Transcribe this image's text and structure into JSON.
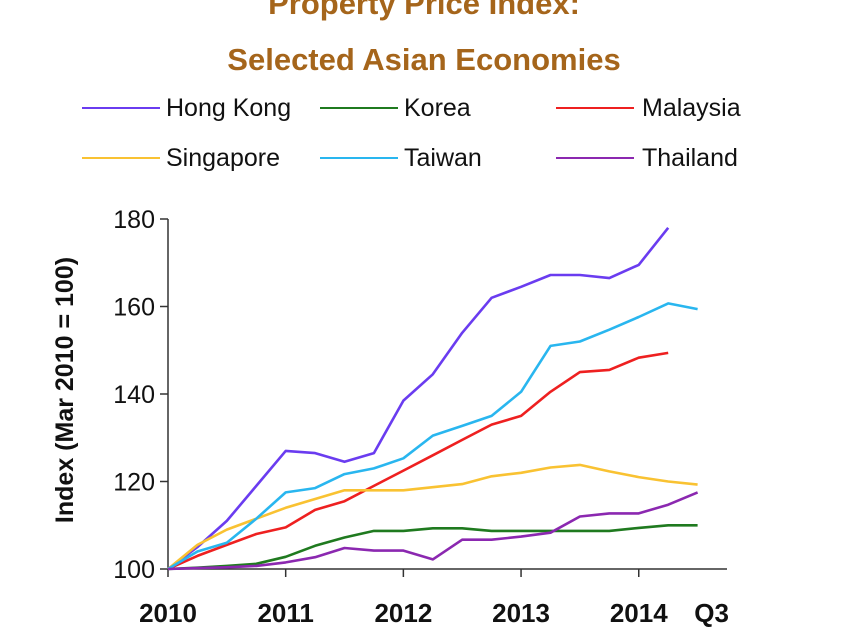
{
  "chart_data": {
    "type": "line",
    "title": "Property Price Index:",
    "subtitle": "Selected Asian Economies",
    "ylabel": "Index (Mar 2010 = 100)",
    "xlabel": "",
    "ylim": [
      100,
      180
    ],
    "yticks": [
      100,
      120,
      140,
      160,
      180
    ],
    "xlim": [
      2010,
      2014.75
    ],
    "xticks": [
      {
        "value": 2010,
        "label": "2010"
      },
      {
        "value": 2011,
        "label": "2011"
      },
      {
        "value": 2012,
        "label": "2012"
      },
      {
        "value": 2013,
        "label": "2013"
      },
      {
        "value": 2014,
        "label": "2014"
      },
      {
        "value": 2014.5,
        "label": "Q3"
      }
    ],
    "grid": false,
    "legend_position": "top",
    "series": [
      {
        "name": "Hong Kong",
        "color": "#6a3cf0",
        "x": [
          2010,
          2010.25,
          2010.5,
          2010.75,
          2011,
          2011.25,
          2011.5,
          2011.75,
          2012,
          2012.25,
          2012.5,
          2012.75,
          2013,
          2013.25,
          2013.5,
          2013.75,
          2014,
          2014.25
        ],
        "values": [
          100,
          105,
          111,
          119,
          127,
          126.5,
          124.5,
          126.5,
          138.5,
          144.5,
          154,
          162,
          164.5,
          167.2,
          167.2,
          166.5,
          169.5,
          178
        ]
      },
      {
        "name": "Korea",
        "color": "#1f7a1f",
        "x": [
          2010,
          2010.25,
          2010.5,
          2010.75,
          2011,
          2011.25,
          2011.5,
          2011.75,
          2012,
          2012.25,
          2012.5,
          2012.75,
          2013,
          2013.25,
          2013.5,
          2013.75,
          2014,
          2014.25,
          2014.5
        ],
        "values": [
          100,
          100.3,
          100.7,
          101.2,
          102.8,
          105.3,
          107.2,
          108.7,
          108.7,
          109.3,
          109.3,
          108.7,
          108.7,
          108.7,
          108.7,
          108.7,
          109.4,
          110,
          110
        ]
      },
      {
        "name": "Malaysia",
        "color": "#ee2020",
        "x": [
          2010,
          2010.25,
          2010.5,
          2010.75,
          2011,
          2011.25,
          2011.5,
          2011.75,
          2012,
          2012.25,
          2012.5,
          2012.75,
          2013,
          2013.25,
          2013.5,
          2013.75,
          2014,
          2014.25
        ],
        "values": [
          100,
          103,
          105.5,
          108,
          109.5,
          113.5,
          115.5,
          119,
          122.5,
          126,
          129.5,
          133,
          135,
          140.5,
          145,
          145.5,
          148.3,
          149.4
        ]
      },
      {
        "name": "Singapore",
        "color": "#f9c232",
        "x": [
          2010,
          2010.25,
          2010.5,
          2010.75,
          2011,
          2011.25,
          2011.5,
          2011.75,
          2012,
          2012.25,
          2012.5,
          2012.75,
          2013,
          2013.25,
          2013.5,
          2013.75,
          2014,
          2014.25,
          2014.5
        ],
        "values": [
          100,
          105.5,
          109,
          111.5,
          114,
          116,
          118,
          118,
          118,
          118.7,
          119.4,
          121.2,
          122,
          123.2,
          123.8,
          122.3,
          121,
          120,
          119.3
        ]
      },
      {
        "name": "Taiwan",
        "color": "#29b6ef",
        "x": [
          2010,
          2010.25,
          2010.5,
          2010.75,
          2011,
          2011.25,
          2011.5,
          2011.75,
          2012,
          2012.25,
          2012.5,
          2012.75,
          2013,
          2013.25,
          2013.5,
          2013.75,
          2014,
          2014.25,
          2014.5
        ],
        "values": [
          100,
          104,
          106,
          111.5,
          117.5,
          118.5,
          121.7,
          123,
          125.3,
          130.5,
          132.7,
          135,
          140.5,
          151,
          152,
          154.7,
          157.6,
          160.7,
          159.4
        ]
      },
      {
        "name": "Thailand",
        "color": "#8b28b0",
        "x": [
          2010,
          2010.25,
          2010.5,
          2010.75,
          2011,
          2011.25,
          2011.5,
          2011.75,
          2012,
          2012.25,
          2012.5,
          2012.75,
          2013,
          2013.25,
          2013.5,
          2013.75,
          2014,
          2014.25,
          2014.5
        ],
        "values": [
          100,
          100.2,
          100.4,
          100.7,
          101.5,
          102.7,
          104.8,
          104.2,
          104.2,
          102.2,
          106.7,
          106.7,
          107.4,
          108.3,
          112,
          112.7,
          112.7,
          114.7,
          117.5
        ]
      }
    ]
  }
}
